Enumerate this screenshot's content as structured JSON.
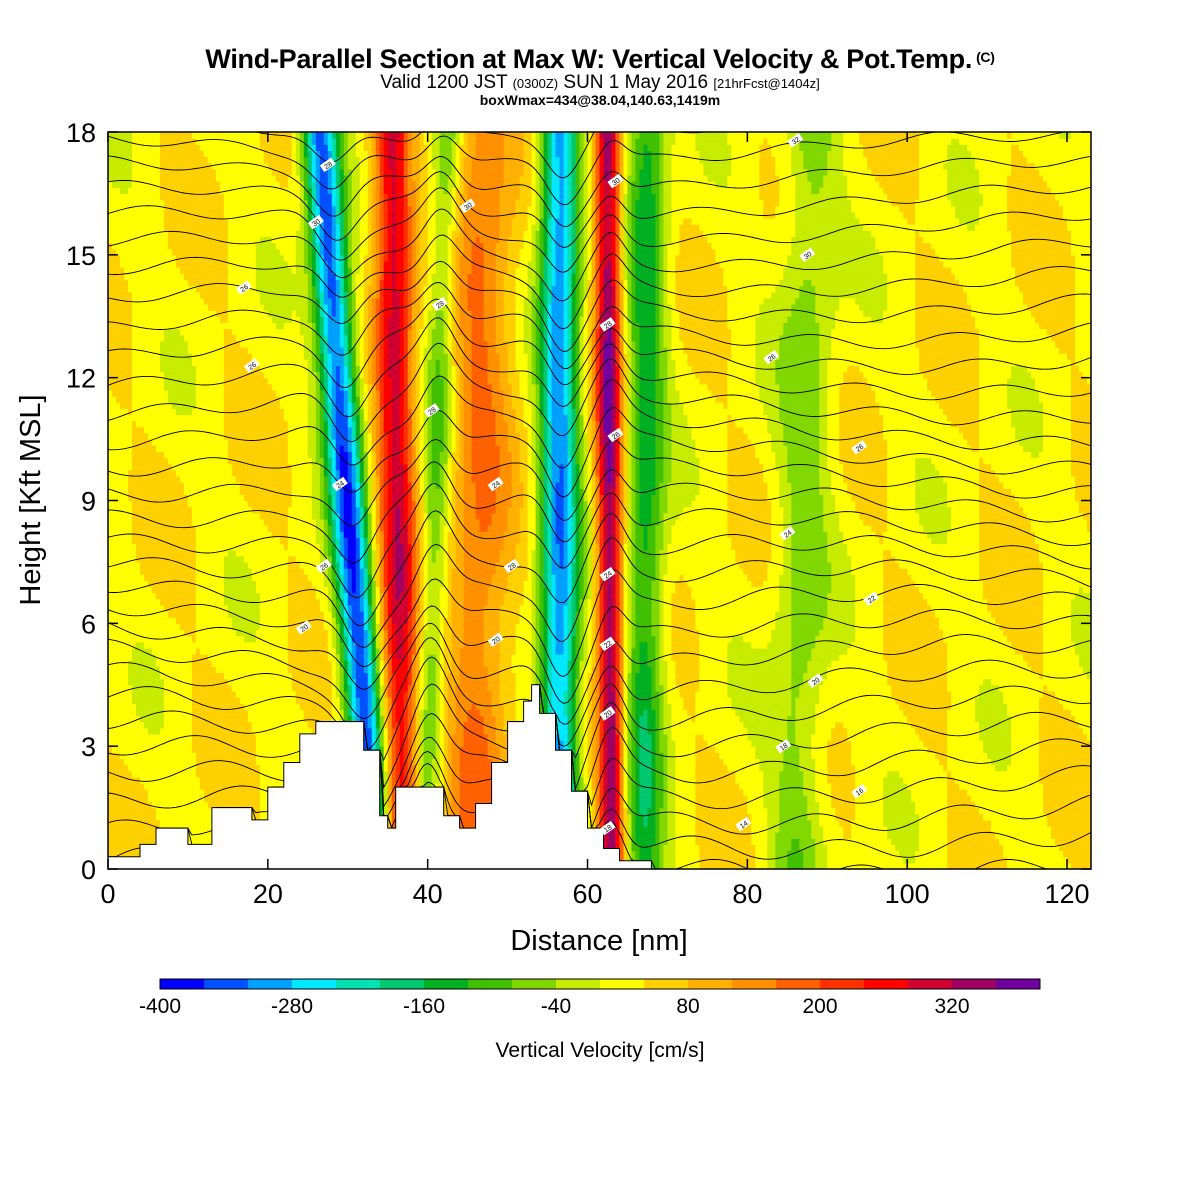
{
  "header": {
    "title": "Wind-Parallel Section at Max W: Vertical Velocity & Pot.Temp.",
    "copyright": "(C)",
    "valid_prefix": "Valid 1200 JST",
    "valid_utc": "(0300Z)",
    "valid_date": "SUN 1 May 2016",
    "forecast": "[21hrFcst@1404z]",
    "box_info": "boxWmax=434@38.04,140.63,1419m"
  },
  "chart_data": {
    "type": "heatmap",
    "xlabel": "Distance [nm]",
    "ylabel": "Height [Kft MSL]",
    "xlim": [
      0,
      123
    ],
    "ylim": [
      0,
      18
    ],
    "x_ticks": [
      0,
      20,
      40,
      60,
      80,
      100,
      120
    ],
    "y_ticks": [
      0,
      3,
      6,
      9,
      12,
      15,
      18
    ],
    "colorbar": {
      "label": "Vertical Velocity [cm/s]",
      "min": -400,
      "max": 400,
      "step": 40,
      "tick_labels": [
        "-400",
        "-280",
        "-160",
        "-40",
        "80",
        "200",
        "320"
      ],
      "colors": [
        "#0000ff",
        "#0050ff",
        "#00a0ff",
        "#00e8ff",
        "#00e0b0",
        "#00c870",
        "#00b020",
        "#40c000",
        "#80d800",
        "#c8ec00",
        "#ffff00",
        "#ffd000",
        "#ffb000",
        "#ff9000",
        "#ff6000",
        "#ff3000",
        "#ff0000",
        "#d00030",
        "#a00060",
        "#7000a0"
      ]
    },
    "terrain": {
      "x": [
        0,
        4,
        4,
        6,
        6,
        10,
        10,
        13,
        13,
        18,
        18,
        20,
        20,
        22,
        22,
        24,
        24,
        26,
        26,
        28,
        28,
        32,
        32,
        34,
        34,
        35,
        35,
        36,
        36,
        38,
        38,
        42,
        42,
        44,
        44,
        46,
        46,
        48,
        48,
        50,
        50,
        52,
        52,
        53,
        53,
        54,
        54,
        56,
        56,
        58,
        58,
        60,
        60,
        62,
        62,
        64,
        64,
        68,
        68,
        123
      ],
      "h": [
        0.3,
        0.3,
        0.6,
        0.6,
        1.0,
        1.0,
        0.6,
        0.6,
        1.5,
        1.5,
        1.2,
        1.2,
        2.0,
        2.0,
        2.6,
        2.6,
        3.3,
        3.3,
        3.6,
        3.6,
        3.6,
        3.6,
        2.9,
        2.9,
        1.3,
        1.3,
        1.0,
        1.0,
        2.0,
        2.0,
        2.0,
        2.0,
        1.3,
        1.3,
        1.0,
        1.0,
        1.6,
        1.6,
        2.6,
        2.6,
        3.6,
        3.6,
        4.1,
        4.1,
        4.5,
        4.5,
        3.8,
        3.8,
        2.9,
        2.9,
        1.9,
        1.9,
        1.0,
        1.0,
        0.5,
        0.5,
        0.2,
        0.2,
        0.0,
        0.0
      ]
    },
    "wave_anomalies": [
      {
        "x_surface": 33.5,
        "x_top": 26.5,
        "half_width_nm": 2.3,
        "w": -380
      },
      {
        "x_surface": 36.8,
        "x_top": 35.5,
        "half_width_nm": 2.4,
        "w": 270
      },
      {
        "x_surface": 39.5,
        "x_top": 42.5,
        "half_width_nm": 1.8,
        "w": -120
      },
      {
        "x_surface": 46.0,
        "x_top": 47.0,
        "half_width_nm": 4.0,
        "w": 130
      },
      {
        "x_surface": 56.5,
        "x_top": 56.5,
        "half_width_nm": 2.4,
        "w": -340
      },
      {
        "x_surface": 63.0,
        "x_top": 62.5,
        "half_width_nm": 1.6,
        "w": 330
      },
      {
        "x_surface": 67.0,
        "x_top": 67.5,
        "half_width_nm": 2.5,
        "w": -170
      },
      {
        "x_surface": 86.0,
        "x_top": 88.0,
        "half_width_nm": 3.5,
        "w": -90
      }
    ],
    "isentrope_labels": [
      {
        "x": 27.5,
        "y": 17.2,
        "text": "28"
      },
      {
        "x": 26.0,
        "y": 15.8,
        "text": "30"
      },
      {
        "x": 17.0,
        "y": 14.2,
        "text": "26"
      },
      {
        "x": 18.0,
        "y": 12.3,
        "text": "26"
      },
      {
        "x": 41.5,
        "y": 13.8,
        "text": "28"
      },
      {
        "x": 45.0,
        "y": 16.2,
        "text": "30"
      },
      {
        "x": 40.5,
        "y": 11.2,
        "text": "28"
      },
      {
        "x": 29.0,
        "y": 9.4,
        "text": "24"
      },
      {
        "x": 48.5,
        "y": 9.4,
        "text": "24"
      },
      {
        "x": 27.0,
        "y": 7.4,
        "text": "26"
      },
      {
        "x": 50.5,
        "y": 7.4,
        "text": "28"
      },
      {
        "x": 24.5,
        "y": 5.9,
        "text": "20"
      },
      {
        "x": 48.5,
        "y": 5.6,
        "text": "20"
      },
      {
        "x": 63.5,
        "y": 16.8,
        "text": "30"
      },
      {
        "x": 62.5,
        "y": 13.3,
        "text": "28"
      },
      {
        "x": 63.5,
        "y": 10.6,
        "text": "26"
      },
      {
        "x": 62.5,
        "y": 7.2,
        "text": "24"
      },
      {
        "x": 62.5,
        "y": 5.5,
        "text": "22"
      },
      {
        "x": 62.5,
        "y": 3.8,
        "text": "20"
      },
      {
        "x": 62.5,
        "y": 1.0,
        "text": "18"
      },
      {
        "x": 86.0,
        "y": 17.8,
        "text": "32"
      },
      {
        "x": 87.5,
        "y": 15.0,
        "text": "30"
      },
      {
        "x": 83.0,
        "y": 12.5,
        "text": "26"
      },
      {
        "x": 94.0,
        "y": 10.3,
        "text": "26"
      },
      {
        "x": 85.0,
        "y": 8.2,
        "text": "24"
      },
      {
        "x": 95.5,
        "y": 6.6,
        "text": "22"
      },
      {
        "x": 88.5,
        "y": 4.6,
        "text": "20"
      },
      {
        "x": 84.5,
        "y": 3.0,
        "text": "18"
      },
      {
        "x": 94.0,
        "y": 1.9,
        "text": "16"
      },
      {
        "x": 79.5,
        "y": 1.1,
        "text": "14"
      }
    ]
  }
}
